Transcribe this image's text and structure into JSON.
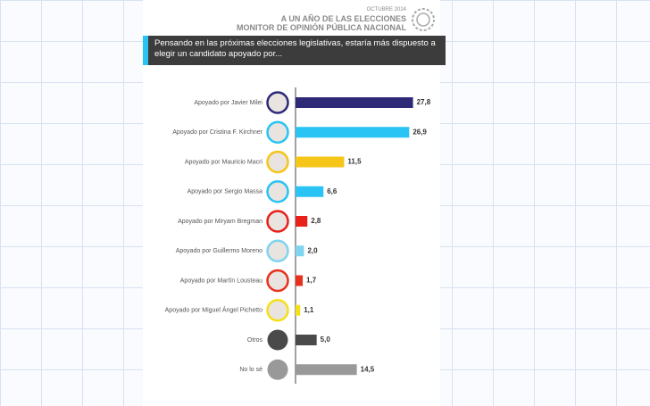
{
  "header": {
    "date": "OCTUBRE 2024",
    "title": "A UN AÑO DE LAS ELECCIONES",
    "subtitle": "MONITOR DE OPINIÓN PÚBLICA NACIONAL"
  },
  "chart_data": {
    "type": "bar",
    "orientation": "horizontal",
    "title": "Pensando en las próximas elecciones legislativas, estaría más dispuesto a elegir un candidato apoyado por...",
    "categories": [
      "Apoyado por Javier Milei",
      "Apoyado por Cristina F. Kirchner",
      "Apoyado por Mauricio Macri",
      "Apoyado por Sergio Massa",
      "Apoyado por Miryam Bregman",
      "Apoyado por Guillermo Moreno",
      "Apoyado por Martín Lousteau",
      "Apoyado por Miguel Ángel Pichetto",
      "Otros",
      "No lo sé"
    ],
    "values": [
      27.8,
      26.9,
      11.5,
      6.6,
      2.8,
      2.0,
      1.7,
      1.1,
      5.0,
      14.5
    ],
    "value_labels": [
      "27,8",
      "26,9",
      "11,5",
      "6,6",
      "2,8",
      "2,0",
      "1,7",
      "1,1",
      "5,0",
      "14,5"
    ],
    "colors": [
      "#2e2a78",
      "#29c3f4",
      "#f5c518",
      "#29c3f4",
      "#e8211c",
      "#7fd4f0",
      "#e8311c",
      "#f5e018",
      "#4a4a4a",
      "#999999"
    ],
    "xlim": [
      0,
      30
    ]
  }
}
